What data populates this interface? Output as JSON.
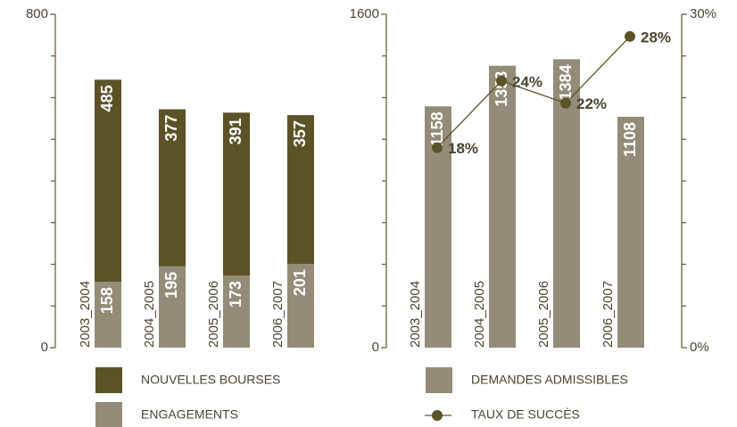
{
  "chart_data": [
    {
      "type": "stacked_bar",
      "categories": [
        "2003_2004",
        "2004_2005",
        "2005_2006",
        "2006_2007"
      ],
      "series": [
        {
          "name": "NOUVELLES BOURSES",
          "color": "#5b5327",
          "values": [
            485,
            377,
            391,
            357
          ]
        },
        {
          "name": "ENGAGEMENTS",
          "color": "#928c78",
          "values": [
            158,
            195,
            173,
            201
          ]
        }
      ],
      "ylim": [
        0,
        800
      ],
      "yticks": [
        0,
        800
      ],
      "minor_yticks": [
        100,
        200,
        300,
        400,
        500,
        600,
        700
      ]
    },
    {
      "type": "bar_line",
      "categories": [
        "2003_2004",
        "2004_2005",
        "2005_2006",
        "2006_2007"
      ],
      "series": [
        {
          "name": "DEMANDES ADMISSIBLES",
          "color": "#928c78",
          "values": [
            1158,
            1353,
            1384,
            1108
          ]
        },
        {
          "name": "TAUX DE SUCCÈS",
          "color": "#5b5327",
          "axis": "y2",
          "values": [
            18,
            24,
            22,
            28
          ],
          "value_labels": [
            "18%",
            "24%",
            "22%",
            "28%"
          ]
        }
      ],
      "ylim": [
        0,
        1600
      ],
      "yticks": [
        0,
        1600
      ],
      "minor_yticks": [
        200,
        400,
        600,
        800,
        1000,
        1200,
        1400
      ],
      "y2lim": [
        0,
        30
      ],
      "y2ticks": [
        {
          "value": 0,
          "label": "0%"
        },
        {
          "value": 30,
          "label": "30%"
        }
      ],
      "minor_y2ticks": [
        3.75,
        7.5,
        11.25,
        15,
        18.75,
        22.5,
        26.25
      ]
    }
  ]
}
